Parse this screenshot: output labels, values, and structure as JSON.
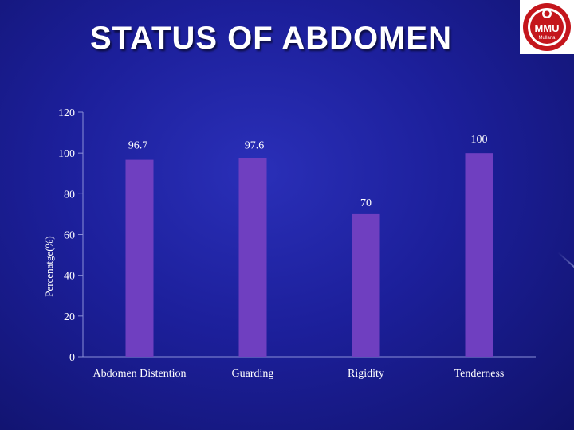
{
  "slide": {
    "title": "STATUS OF ABDOMEN",
    "logo_text": "MMU",
    "logo_subtext": "Mullana"
  },
  "chart_data": {
    "type": "bar",
    "title": "",
    "xlabel": "",
    "ylabel": "Percenatge(%)",
    "categories": [
      "Abdomen Distention",
      "Guarding",
      "Rigidity",
      "Tenderness"
    ],
    "series": [
      {
        "values": [
          96.7,
          97.6,
          70,
          100
        ],
        "data_labels": [
          "96.7",
          "97.6",
          "70",
          "100"
        ]
      }
    ],
    "ylim": [
      0,
      120
    ],
    "yticks": [
      0,
      20,
      40,
      60,
      80,
      100,
      120
    ],
    "grid": false,
    "legend": "none",
    "bar_color": "#6f3fc0",
    "axis_color": "#8a8fd8"
  }
}
